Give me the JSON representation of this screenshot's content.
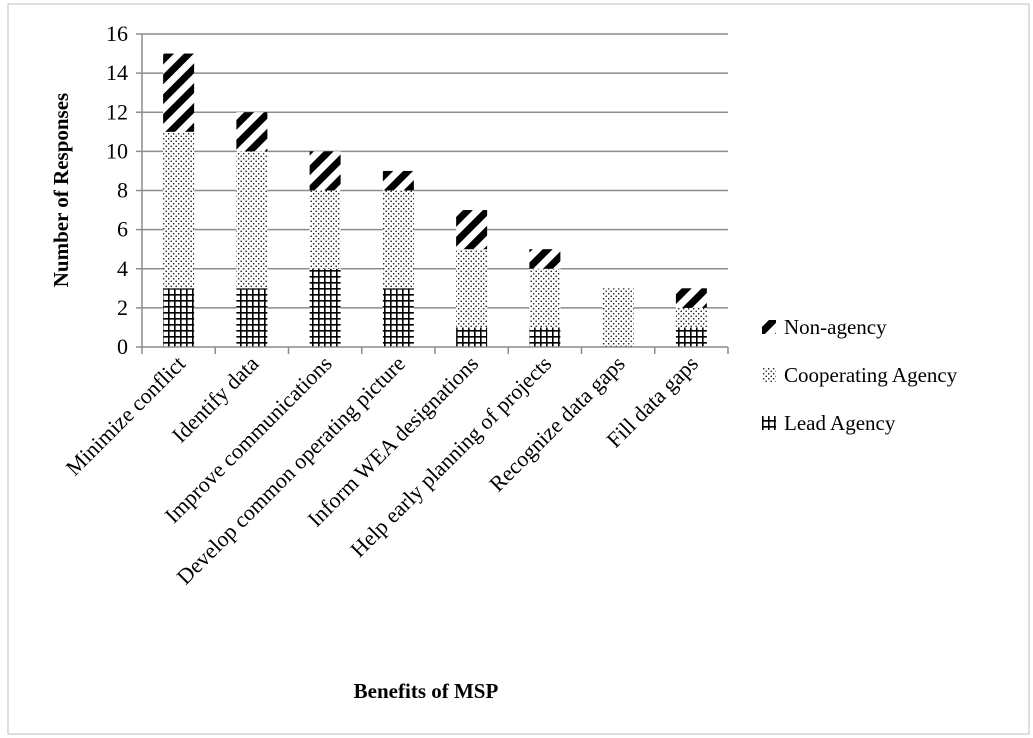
{
  "chart_data": {
    "type": "bar",
    "stacked": true,
    "title": "",
    "xlabel": "Benefits of MSP",
    "ylabel": "Number of Responses",
    "ylim": [
      0,
      16
    ],
    "yticks": [
      0,
      2,
      4,
      6,
      8,
      10,
      12,
      14,
      16
    ],
    "grid": true,
    "legend_position": "right",
    "categories": [
      "Minimize conflict",
      "Identify data",
      "Improve communications",
      "Develop common operating picture",
      "Inform WEA designations",
      "Help early planning of projects",
      "Recognize data gaps",
      "Fill data gaps"
    ],
    "series": [
      {
        "name": "Lead Agency",
        "pattern": "grid",
        "values": [
          3,
          3,
          4,
          3,
          1,
          1,
          0,
          1
        ]
      },
      {
        "name": "Cooperating Agency",
        "pattern": "dots",
        "values": [
          8,
          7,
          4,
          5,
          4,
          3,
          3,
          1
        ]
      },
      {
        "name": "Non-agency",
        "pattern": "diagonal-stripes",
        "values": [
          4,
          2,
          2,
          1,
          2,
          1,
          0,
          1
        ]
      }
    ],
    "legend_order": [
      "Non-agency",
      "Cooperating Agency",
      "Lead Agency"
    ]
  }
}
